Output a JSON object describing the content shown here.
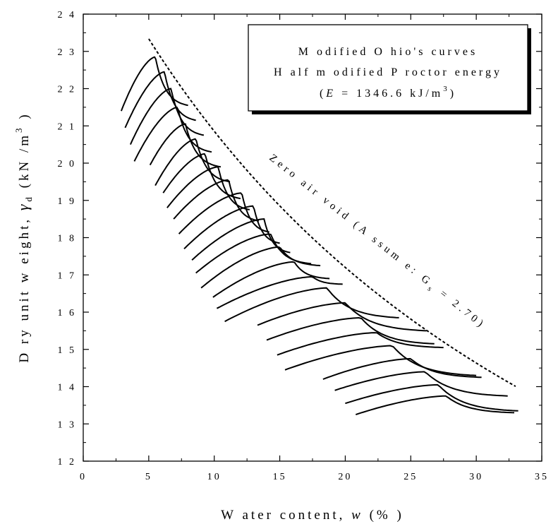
{
  "chart_data": {
    "type": "line",
    "title": "",
    "xlabel": "Water content, w (%)",
    "xlabel_parts": {
      "pre": "W ater content, ",
      "var": "w",
      "post": " (% )"
    },
    "ylabel": "Dry unit weight, γd (kN/m³)",
    "ylabel_parts": {
      "pre": "D ry unit w eight, ",
      "gamma": "γ",
      "sub": "d",
      "post": " (kN /m",
      "sup": "3",
      "close": " )"
    },
    "xlim": [
      0,
      35
    ],
    "ylim": [
      12,
      24
    ],
    "x_ticks": [
      "0",
      "5",
      "10",
      "15",
      "20",
      "25",
      "30",
      "35"
    ],
    "y_ticks": [
      "1 2",
      "1 3",
      "1 4",
      "1 5",
      "1 6",
      "1 7",
      "1 8",
      "1 9",
      "2 0",
      "2 1",
      "2 2",
      "2 3",
      "2 4"
    ],
    "grid": false,
    "legend": {
      "placement": "top-right",
      "line1": "M odified O hio's curves",
      "line2": "H alf m odified P roctor energy",
      "line3_pre": "(",
      "line3_var": "E",
      "line3_mid": " = 1346.6 kJ/m",
      "line3_sup": "3",
      "line3_post": ")"
    },
    "annotation": {
      "pre": "Zero air void (A ssum e: G",
      "sub": "s",
      "post": " = 2.70)"
    },
    "zero_air_void": {
      "Gs": 2.7,
      "x_range": [
        5.0,
        33.0
      ]
    },
    "series": [
      {
        "w_opt": 5.5,
        "g_max": 22.85,
        "w_start": 2.9,
        "w_end": 8.0,
        "g_start": 21.4,
        "g_end": 21.55
      },
      {
        "w_opt": 6.2,
        "g_max": 22.45,
        "w_start": 3.2,
        "w_end": 8.6,
        "g_start": 20.95,
        "g_end": 21.15
      },
      {
        "w_opt": 6.7,
        "g_max": 22.0,
        "w_start": 3.6,
        "w_end": 9.2,
        "g_start": 20.5,
        "g_end": 20.75
      },
      {
        "w_opt": 7.2,
        "g_max": 21.5,
        "w_start": 3.9,
        "w_end": 9.8,
        "g_start": 20.05,
        "g_end": 20.3
      },
      {
        "w_opt": 7.8,
        "g_max": 21.05,
        "w_start": 5.1,
        "w_end": 10.5,
        "g_start": 19.95,
        "g_end": 19.9
      },
      {
        "w_opt": 8.6,
        "g_max": 20.65,
        "w_start": 5.5,
        "w_end": 11.2,
        "g_start": 19.4,
        "g_end": 19.5
      },
      {
        "w_opt": 9.3,
        "g_max": 20.25,
        "w_start": 6.1,
        "w_end": 12.0,
        "g_start": 19.2,
        "g_end": 19.05
      },
      {
        "w_opt": 10.3,
        "g_max": 19.9,
        "w_start": 6.4,
        "w_end": 12.7,
        "g_start": 18.8,
        "g_end": 18.75
      },
      {
        "w_opt": 11.1,
        "g_max": 19.55,
        "w_start": 6.9,
        "w_end": 13.4,
        "g_start": 18.5,
        "g_end": 18.45
      },
      {
        "w_opt": 12.1,
        "g_max": 19.2,
        "w_start": 7.3,
        "w_end": 14.2,
        "g_start": 18.1,
        "g_end": 18.15
      },
      {
        "w_opt": 13.0,
        "g_max": 18.85,
        "w_start": 7.7,
        "w_end": 15.0,
        "g_start": 17.7,
        "g_end": 17.85
      },
      {
        "w_opt": 13.8,
        "g_max": 18.5,
        "w_start": 8.3,
        "w_end": 15.8,
        "g_start": 17.4,
        "g_end": 17.6
      },
      {
        "w_opt": 14.3,
        "g_max": 18.1,
        "w_start": 8.6,
        "w_end": 17.4,
        "g_start": 17.05,
        "g_end": 17.3
      },
      {
        "w_opt": 15.0,
        "g_max": 17.75,
        "w_start": 9.0,
        "w_end": 18.1,
        "g_start": 16.65,
        "g_end": 17.25
      },
      {
        "w_opt": 16.1,
        "g_max": 17.35,
        "w_start": 9.9,
        "w_end": 18.8,
        "g_start": 16.4,
        "g_end": 16.9
      },
      {
        "w_opt": 17.5,
        "g_max": 16.95,
        "w_start": 10.2,
        "w_end": 19.8,
        "g_start": 16.1,
        "g_end": 16.75
      },
      {
        "w_opt": 18.6,
        "g_max": 16.65,
        "w_start": 10.8,
        "w_end": 24.1,
        "g_start": 15.75,
        "g_end": 15.85
      },
      {
        "w_opt": 20.0,
        "g_max": 16.25,
        "w_start": 13.3,
        "w_end": 26.2,
        "g_start": 15.65,
        "g_end": 15.5
      },
      {
        "w_opt": 21.2,
        "g_max": 15.85,
        "w_start": 14.0,
        "w_end": 26.8,
        "g_start": 15.25,
        "g_end": 15.15
      },
      {
        "w_opt": 22.4,
        "g_max": 15.45,
        "w_start": 14.8,
        "w_end": 27.5,
        "g_start": 14.85,
        "g_end": 15.05
      },
      {
        "w_opt": 23.6,
        "g_max": 15.1,
        "w_start": 15.4,
        "w_end": 30.0,
        "g_start": 14.45,
        "g_end": 14.3
      },
      {
        "w_opt": 25.0,
        "g_max": 14.75,
        "w_start": 18.3,
        "w_end": 30.4,
        "g_start": 14.2,
        "g_end": 14.25
      },
      {
        "w_opt": 26.1,
        "g_max": 14.4,
        "w_start": 19.2,
        "w_end": 32.4,
        "g_start": 13.9,
        "g_end": 13.75
      },
      {
        "w_opt": 27.1,
        "g_max": 14.05,
        "w_start": 20.0,
        "w_end": 33.2,
        "g_start": 13.55,
        "g_end": 13.35
      },
      {
        "w_opt": 27.7,
        "g_max": 13.75,
        "w_start": 20.8,
        "w_end": 32.9,
        "g_start": 13.25,
        "g_end": 13.3
      }
    ]
  }
}
